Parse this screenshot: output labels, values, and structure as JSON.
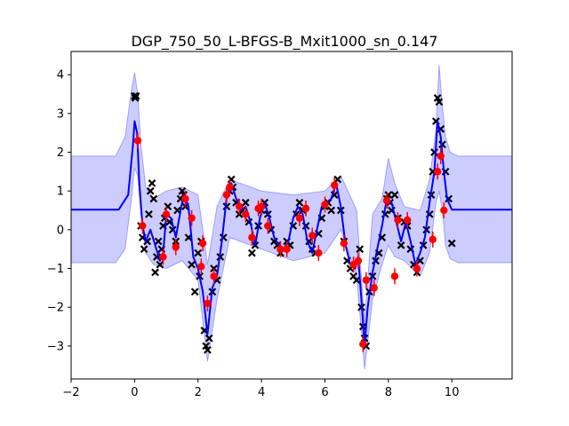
{
  "chart_data": {
    "type": "line",
    "title": "DGP_750_50_L-BFGS-B_Mxit1000_sn_0.147",
    "xlabel": "",
    "ylabel": "",
    "xlim": [
      -2,
      11.9
    ],
    "ylim": [
      -3.85,
      4.6
    ],
    "xticks": [
      -2,
      0,
      2,
      4,
      6,
      8,
      10
    ],
    "yticks": [
      -3,
      -2,
      -1,
      0,
      1,
      2,
      3,
      4
    ],
    "grid": false,
    "legend": "none",
    "colors": {
      "mean_line": "#0000ff",
      "band_fill": "#0000ff",
      "band_opacity": 0.2,
      "train_points": "#000000",
      "test_points": "#ff0000",
      "errorbar": "#ff0000"
    },
    "series": [
      {
        "kind": "mean",
        "x": [
          -2,
          -0.5,
          -0.2,
          -0.05,
          0.0,
          0.08,
          0.15,
          0.25,
          0.35,
          0.5,
          0.65,
          0.8,
          0.9,
          1.0,
          1.15,
          1.3,
          1.45,
          1.55,
          1.7,
          1.85,
          2.0,
          2.15,
          2.3,
          2.45,
          2.6,
          2.75,
          2.9,
          3.05,
          3.2,
          3.35,
          3.5,
          3.65,
          3.8,
          3.95,
          4.1,
          4.25,
          4.4,
          4.55,
          4.7,
          4.85,
          5.0,
          5.15,
          5.3,
          5.45,
          5.6,
          5.75,
          5.9,
          6.05,
          6.2,
          6.35,
          6.5,
          6.65,
          6.8,
          6.95,
          7.05,
          7.15,
          7.25,
          7.35,
          7.5,
          7.65,
          7.8,
          7.95,
          8.1,
          8.25,
          8.4,
          8.55,
          8.7,
          8.85,
          9.0,
          9.15,
          9.3,
          9.45,
          9.55,
          9.65,
          9.75,
          9.85,
          10.0,
          10.2,
          10.5,
          11.9
        ],
        "y": [
          0.52,
          0.52,
          0.9,
          2.2,
          2.8,
          2.5,
          1.2,
          0.1,
          -0.3,
          0.0,
          -0.4,
          -0.8,
          -0.6,
          0.4,
          0.3,
          -0.2,
          0.5,
          0.9,
          0.6,
          -0.7,
          -1.0,
          -1.6,
          -2.7,
          -1.5,
          -1.2,
          -0.3,
          0.8,
          1.2,
          0.8,
          0.5,
          0.6,
          0.2,
          -0.4,
          0.3,
          0.7,
          0.3,
          -0.2,
          -0.4,
          -0.5,
          -0.3,
          0.3,
          0.6,
          0.4,
          -0.3,
          -0.6,
          0.0,
          0.6,
          0.7,
          0.8,
          1.2,
          0.6,
          -0.4,
          -0.9,
          -1.0,
          -0.7,
          -1.8,
          -3.0,
          -2.0,
          -1.1,
          -0.5,
          0.1,
          0.8,
          0.7,
          0.2,
          -0.3,
          0.2,
          -0.3,
          -0.9,
          -0.6,
          -0.2,
          0.7,
          1.5,
          2.8,
          2.4,
          1.5,
          0.8,
          0.52,
          0.52,
          0.52,
          0.52
        ]
      },
      {
        "kind": "band_upper",
        "x": [
          -2,
          -0.6,
          -0.3,
          -0.1,
          0.0,
          0.1,
          0.2,
          0.35,
          0.6,
          1.0,
          1.5,
          2.0,
          2.3,
          2.6,
          3.0,
          4.0,
          5.0,
          6.0,
          6.5,
          7.0,
          7.25,
          7.5,
          7.8,
          8.0,
          8.2,
          8.5,
          9.0,
          9.3,
          9.5,
          9.6,
          9.7,
          9.8,
          9.95,
          10.2,
          10.6,
          11.9
        ],
        "y": [
          1.9,
          1.9,
          2.4,
          3.6,
          4.05,
          3.5,
          2.2,
          1.1,
          0.8,
          1.0,
          1.1,
          0.9,
          -0.9,
          0.6,
          1.3,
          1.0,
          0.9,
          1.0,
          1.4,
          0.5,
          -2.4,
          0.4,
          0.8,
          1.85,
          1.2,
          0.6,
          0.5,
          1.3,
          2.6,
          4.25,
          3.2,
          2.4,
          2.0,
          1.9,
          1.9,
          1.9
        ]
      },
      {
        "kind": "band_lower",
        "x": [
          -2,
          -0.6,
          -0.3,
          -0.1,
          0.0,
          0.1,
          0.2,
          0.35,
          0.6,
          1.0,
          1.5,
          2.0,
          2.3,
          2.6,
          3.0,
          4.0,
          5.0,
          6.0,
          6.5,
          7.0,
          7.25,
          7.5,
          7.8,
          8.0,
          8.2,
          8.5,
          9.0,
          9.3,
          9.5,
          9.6,
          9.7,
          9.8,
          9.95,
          10.2,
          10.6,
          11.9
        ],
        "y": [
          -0.85,
          -0.85,
          -0.5,
          0.8,
          1.6,
          1.4,
          0.4,
          -0.6,
          -0.9,
          -1.0,
          -0.8,
          -1.3,
          -3.4,
          -1.8,
          -0.2,
          -0.5,
          -0.8,
          -0.6,
          0.0,
          -1.2,
          -3.6,
          -1.8,
          -0.9,
          -0.4,
          -0.7,
          -0.8,
          -1.2,
          -0.6,
          0.7,
          1.0,
          0.5,
          -0.4,
          -0.75,
          -0.85,
          -0.85,
          -0.85
        ]
      },
      {
        "kind": "train",
        "x": [
          0.0,
          0.02,
          0.05,
          0.2,
          0.25,
          0.3,
          0.4,
          0.45,
          0.5,
          0.55,
          0.6,
          0.65,
          0.7,
          0.75,
          0.8,
          0.85,
          0.9,
          0.95,
          1.05,
          1.1,
          1.2,
          1.3,
          1.35,
          1.45,
          1.5,
          1.55,
          1.6,
          1.7,
          1.8,
          1.9,
          2.0,
          2.05,
          2.1,
          2.2,
          2.25,
          2.3,
          2.35,
          2.45,
          2.5,
          2.6,
          2.7,
          2.8,
          2.9,
          3.0,
          3.05,
          3.1,
          3.2,
          3.3,
          3.4,
          3.5,
          3.6,
          3.7,
          3.8,
          3.9,
          4.0,
          4.1,
          4.2,
          4.3,
          4.4,
          4.5,
          4.6,
          4.7,
          4.8,
          4.9,
          5.0,
          5.1,
          5.2,
          5.3,
          5.4,
          5.5,
          5.6,
          5.7,
          5.8,
          5.9,
          6.0,
          6.1,
          6.2,
          6.3,
          6.4,
          6.5,
          6.6,
          6.7,
          6.8,
          6.9,
          7.0,
          7.1,
          7.15,
          7.2,
          7.25,
          7.3,
          7.4,
          7.5,
          7.6,
          7.7,
          7.8,
          7.9,
          7.95,
          8.0,
          8.05,
          8.1,
          8.2,
          8.3,
          8.4,
          8.5,
          8.6,
          8.7,
          8.8,
          8.9,
          9.0,
          9.1,
          9.2,
          9.3,
          9.35,
          9.4,
          9.45,
          9.5,
          9.55,
          9.6,
          9.65,
          9.7,
          9.8,
          9.9,
          10.0
        ],
        "y": [
          3.45,
          3.4,
          3.45,
          0.1,
          -0.2,
          -0.5,
          -0.3,
          0.4,
          1.0,
          1.2,
          0.8,
          -1.1,
          -0.7,
          -0.3,
          -0.9,
          -0.5,
          0.1,
          0.3,
          0.6,
          0.2,
          0.0,
          -0.3,
          0.5,
          0.8,
          1.0,
          0.9,
          0.6,
          -0.2,
          -0.9,
          -1.6,
          -0.6,
          -1.2,
          -0.3,
          -2.6,
          -3.0,
          -3.1,
          -2.8,
          -1.6,
          -1.0,
          -1.3,
          -0.7,
          -0.2,
          0.6,
          1.0,
          1.3,
          1.1,
          0.7,
          0.4,
          0.5,
          0.7,
          0.2,
          -0.6,
          -0.4,
          0.1,
          0.5,
          0.7,
          0.4,
          0.0,
          -0.3,
          -0.4,
          -0.6,
          -0.5,
          -0.3,
          -0.4,
          0.1,
          0.4,
          0.7,
          0.5,
          0.1,
          -0.3,
          -0.5,
          -0.6,
          -0.1,
          0.3,
          0.6,
          0.7,
          0.5,
          0.9,
          1.3,
          0.5,
          -0.3,
          -0.8,
          -1.0,
          -1.2,
          -1.3,
          -0.5,
          -2.0,
          -2.5,
          -2.8,
          -3.0,
          -1.6,
          -1.2,
          -0.8,
          -0.6,
          -0.2,
          0.4,
          0.8,
          0.9,
          0.7,
          0.5,
          0.9,
          0.3,
          -0.4,
          0.2,
          0.1,
          -0.5,
          -0.9,
          -1.1,
          -0.8,
          -0.4,
          0.0,
          0.4,
          0.9,
          1.5,
          2.0,
          2.8,
          3.4,
          3.3,
          2.6,
          2.2,
          1.5,
          0.8,
          -0.35
        ]
      },
      {
        "kind": "test",
        "x": [
          0.1,
          0.25,
          0.9,
          1.0,
          1.3,
          1.6,
          1.8,
          2.1,
          2.15,
          2.3,
          2.5,
          2.9,
          3.0,
          3.3,
          3.5,
          3.7,
          3.9,
          4.0,
          4.2,
          4.6,
          4.8,
          5.2,
          5.4,
          5.6,
          5.8,
          6.0,
          6.3,
          6.6,
          6.9,
          7.05,
          7.2,
          7.3,
          7.55,
          7.95,
          8.2,
          8.3,
          8.6,
          8.9,
          9.4,
          9.55,
          9.65,
          9.75
        ],
        "y": [
          2.3,
          0.1,
          -0.7,
          0.4,
          -0.45,
          0.8,
          0.3,
          -0.95,
          -0.35,
          -1.9,
          -1.2,
          0.9,
          1.1,
          0.6,
          0.4,
          -0.2,
          0.55,
          0.6,
          0.1,
          -0.5,
          -0.5,
          0.3,
          0.55,
          -0.15,
          -0.6,
          0.65,
          1.15,
          -0.35,
          -0.9,
          -0.8,
          -2.95,
          -1.3,
          -1.5,
          0.75,
          -1.2,
          0.25,
          0.25,
          -1.0,
          -0.25,
          1.5,
          1.9,
          0.5
        ]
      }
    ]
  }
}
